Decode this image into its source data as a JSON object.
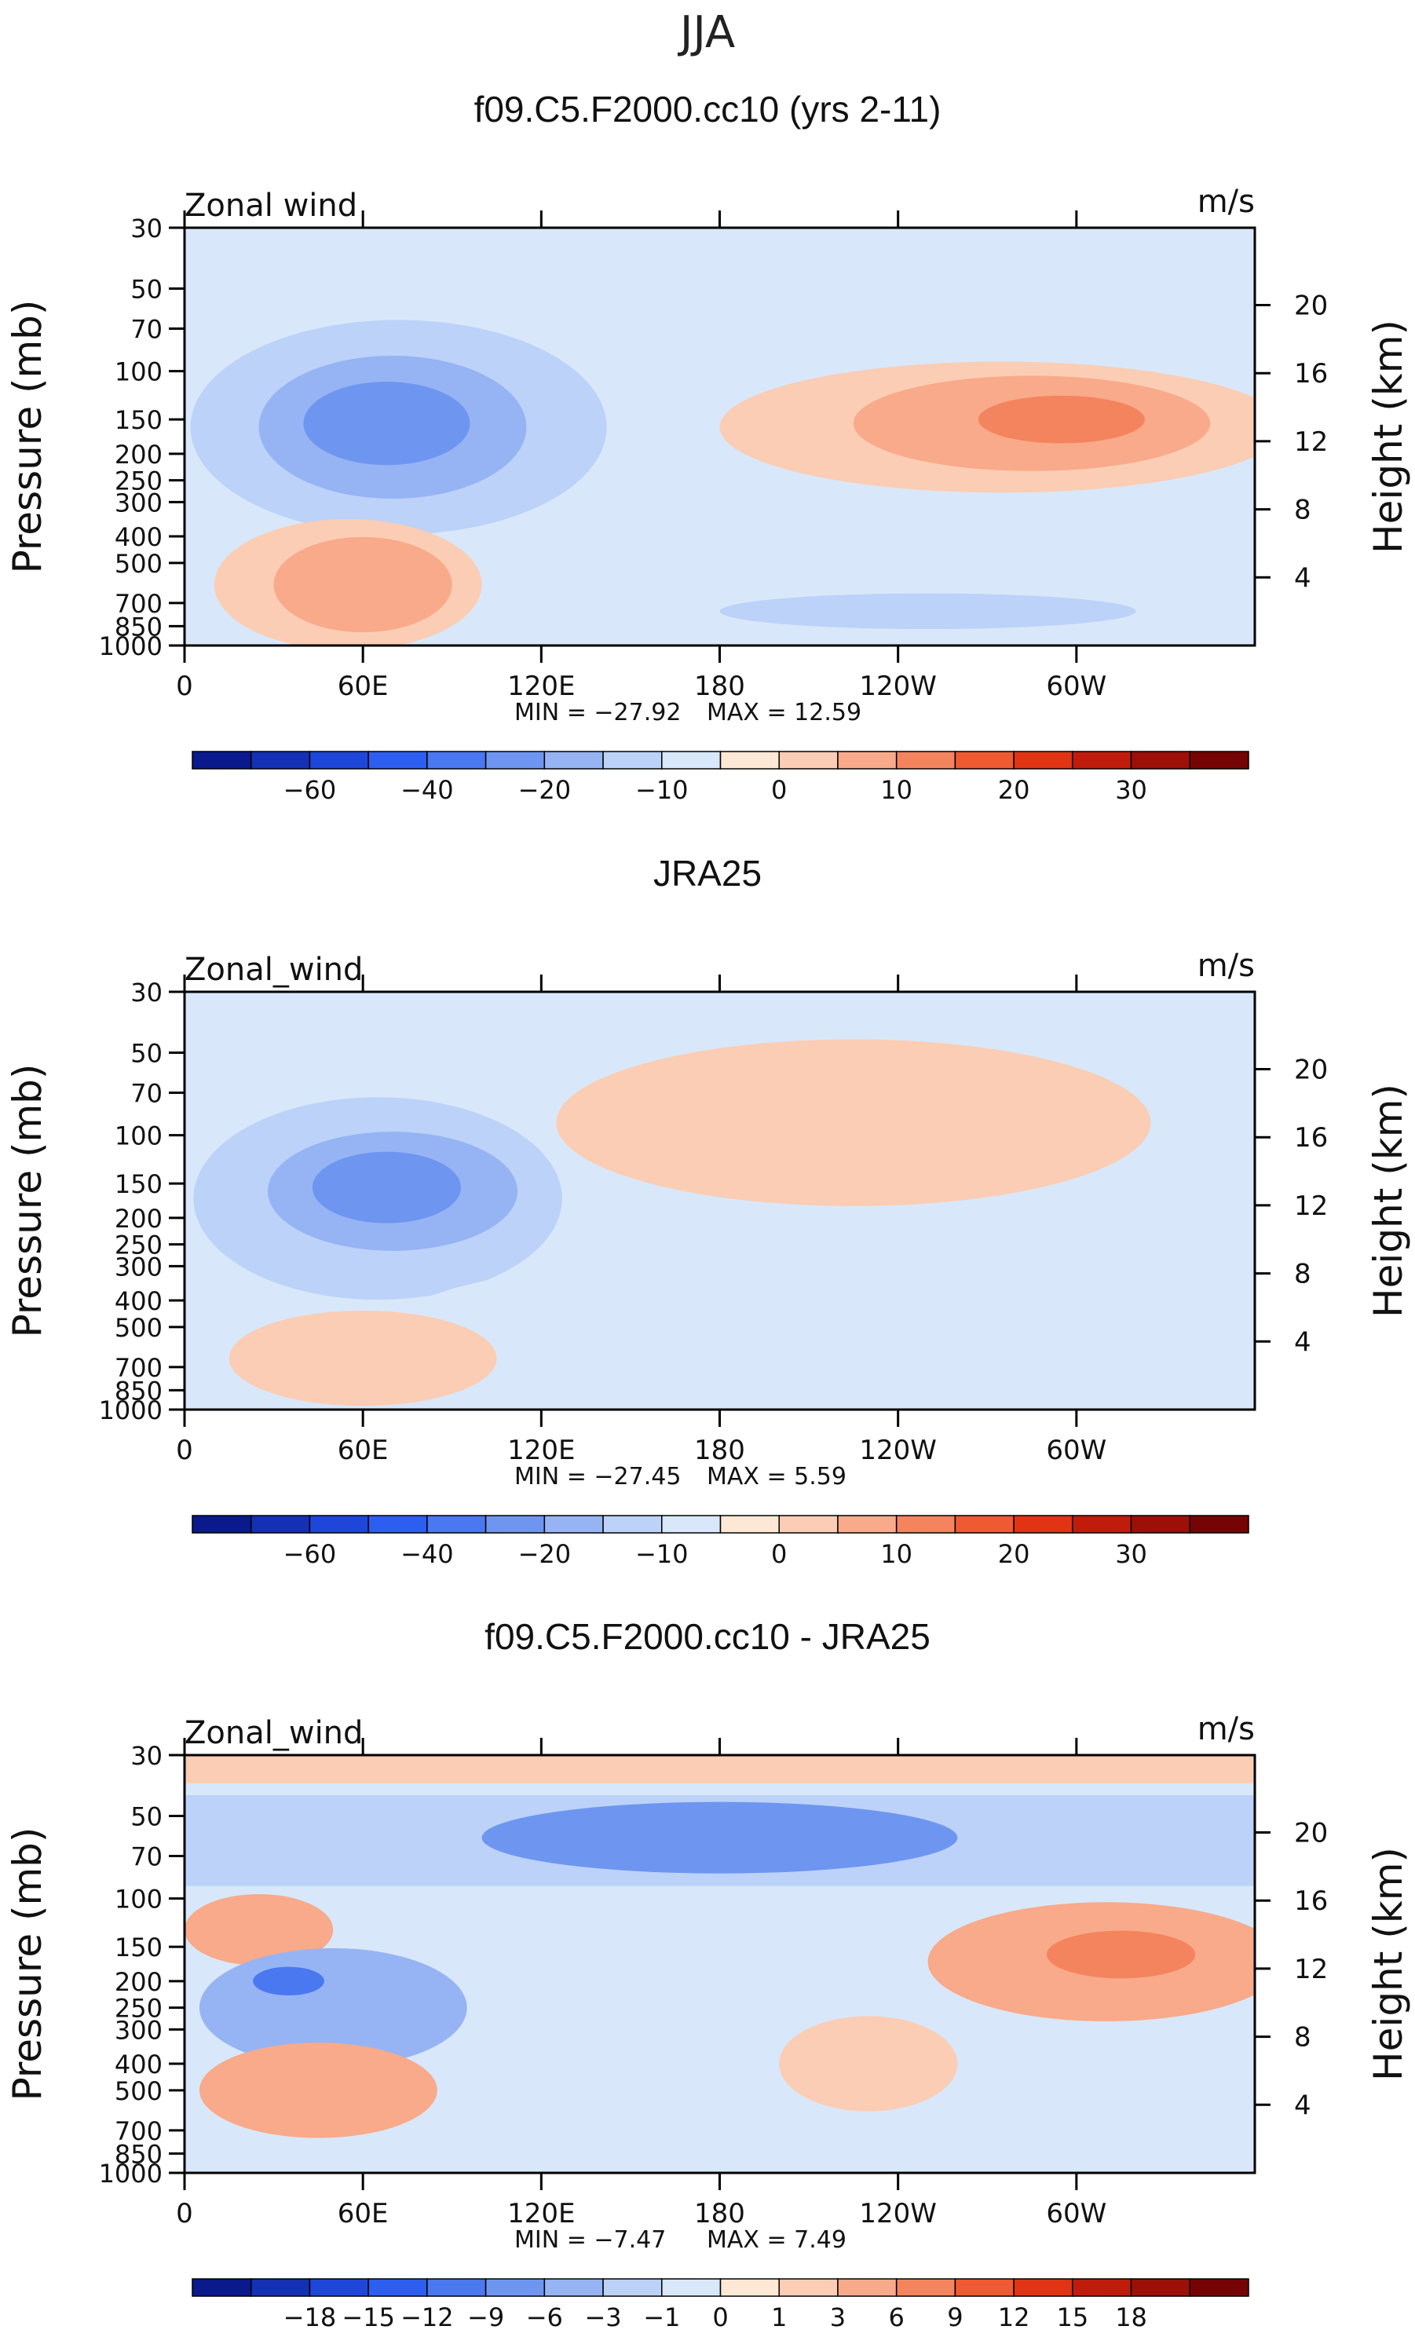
{
  "season": "JJA",
  "colors": {
    "main_scale": [
      "#0a1a8c",
      "#1430b4",
      "#1e46d8",
      "#2c5ef0",
      "#4a78f0",
      "#6e96f0",
      "#96b4f4",
      "#bcd2f8",
      "#d8e8fa",
      "#fde8d6",
      "#fbcdb4",
      "#f8aa8a",
      "#f4845e",
      "#ee5a32",
      "#e03414",
      "#c01c0c",
      "#9c1008",
      "#760404"
    ],
    "diff_scale": [
      "#0a1a8c",
      "#1430b4",
      "#1e46d8",
      "#2c5ef0",
      "#4a78f0",
      "#6e96f0",
      "#96b4f4",
      "#bcd2f8",
      "#d8e8fa",
      "#fde8d6",
      "#fbcdb4",
      "#f8aa8a",
      "#f4845e",
      "#ee5a32",
      "#e03414",
      "#c01c0c",
      "#9c1008",
      "#760404"
    ]
  },
  "chart_data": [
    {
      "type": "heatmap",
      "title": "f09.C5.F2000.cc10 (yrs 2-11)",
      "variable_label": "Zonal wind",
      "units_label": "m/s",
      "ylabel": "Pressure (mb)",
      "ylabel_right": "Height (km)",
      "x_ticks": [
        {
          "lon": 0,
          "label": "0"
        },
        {
          "lon": 60,
          "label": "60E"
        },
        {
          "lon": 120,
          "label": "120E"
        },
        {
          "lon": 180,
          "label": "180"
        },
        {
          "lon": 240,
          "label": "120W"
        },
        {
          "lon": 300,
          "label": "60W"
        }
      ],
      "xlim": [
        0,
        360
      ],
      "y_ticks": [
        30,
        50,
        70,
        100,
        150,
        200,
        250,
        300,
        400,
        500,
        700,
        850,
        1000
      ],
      "ylim": [
        1000,
        30
      ],
      "height_ticks": [
        {
          "km": 20,
          "label": "20"
        },
        {
          "km": 16,
          "label": "16"
        },
        {
          "km": 12,
          "label": "12"
        },
        {
          "km": 8,
          "label": "8"
        },
        {
          "km": 4,
          "label": "4"
        }
      ],
      "min_text": "MIN = −27.92",
      "max_text": "MAX =   12.59",
      "min": -27.92,
      "max": 12.59,
      "colorbar_labels": [
        {
          "idx": 1,
          "text": "−60"
        },
        {
          "idx": 3,
          "text": "−40"
        },
        {
          "idx": 5,
          "text": "−20"
        },
        {
          "idx": 7,
          "text": "−10"
        },
        {
          "idx": 9,
          "text": "0"
        },
        {
          "idx": 11,
          "text": "10"
        },
        {
          "idx": 13,
          "text": "20"
        },
        {
          "idx": 15,
          "text": "30"
        }
      ],
      "features": [
        {
          "name": "upper-band",
          "lon0": 0,
          "lon1": 360,
          "p0": 30,
          "p1": 70,
          "level": 8
        },
        {
          "name": "easterly-jet-outer",
          "lon": 72,
          "p": 160,
          "rlon": 70,
          "rp": 0.9,
          "level": 7
        },
        {
          "name": "easterly-jet-mid",
          "lon": 70,
          "p": 160,
          "rlon": 45,
          "rp": 0.6,
          "level": 6
        },
        {
          "name": "easterly-jet-core",
          "lon": 68,
          "p": 155,
          "rlon": 28,
          "rp": 0.35,
          "level": 5
        },
        {
          "name": "westerly-jet-outer",
          "lon": 275,
          "p": 160,
          "rlon": 95,
          "rp": 0.55,
          "level": 10
        },
        {
          "name": "westerly-jet-mid",
          "lon": 285,
          "p": 155,
          "rlon": 60,
          "rp": 0.4,
          "level": 11
        },
        {
          "name": "westerly-jet-core",
          "lon": 295,
          "p": 150,
          "rlon": 28,
          "rp": 0.2,
          "level": 12
        },
        {
          "name": "lower-westerly",
          "lon": 55,
          "p": 600,
          "rlon": 45,
          "rp": 0.55,
          "level": 10
        },
        {
          "name": "lower-westerly-core",
          "lon": 60,
          "p": 600,
          "rlon": 30,
          "rp": 0.4,
          "level": 11
        },
        {
          "name": "tropical-easterly-low",
          "lon": 250,
          "p": 750,
          "rlon": 70,
          "rp": 0.15,
          "level": 7
        }
      ]
    },
    {
      "type": "heatmap",
      "title": "JRA25",
      "variable_label": "Zonal_wind",
      "units_label": "m/s",
      "ylabel": "Pressure (mb)",
      "ylabel_right": "Height (km)",
      "x_ticks": [
        {
          "lon": 0,
          "label": "0"
        },
        {
          "lon": 60,
          "label": "60E"
        },
        {
          "lon": 120,
          "label": "120E"
        },
        {
          "lon": 180,
          "label": "180"
        },
        {
          "lon": 240,
          "label": "120W"
        },
        {
          "lon": 300,
          "label": "60W"
        }
      ],
      "xlim": [
        0,
        360
      ],
      "y_ticks": [
        30,
        50,
        70,
        100,
        150,
        200,
        250,
        300,
        400,
        500,
        700,
        850,
        1000
      ],
      "ylim": [
        1000,
        30
      ],
      "height_ticks": [
        {
          "km": 20,
          "label": "20"
        },
        {
          "km": 16,
          "label": "16"
        },
        {
          "km": 12,
          "label": "12"
        },
        {
          "km": 8,
          "label": "8"
        },
        {
          "km": 4,
          "label": "4"
        }
      ],
      "min_text": "MIN = −27.45",
      "max_text": "MAX =     5.59",
      "min": -27.45,
      "max": 5.59,
      "colorbar_labels": [
        {
          "idx": 1,
          "text": "−60"
        },
        {
          "idx": 3,
          "text": "−40"
        },
        {
          "idx": 5,
          "text": "−20"
        },
        {
          "idx": 7,
          "text": "−10"
        },
        {
          "idx": 9,
          "text": "0"
        },
        {
          "idx": 11,
          "text": "10"
        },
        {
          "idx": 13,
          "text": "20"
        },
        {
          "idx": 15,
          "text": "30"
        }
      ],
      "features": [
        {
          "name": "top-band",
          "lon0": 0,
          "lon1": 360,
          "p0": 30,
          "p1": 38,
          "level": 8
        },
        {
          "name": "upper-westerly",
          "lon": 225,
          "p": 90,
          "rlon": 100,
          "rp": 0.7,
          "level": 10
        },
        {
          "name": "easterly-jet-outer",
          "lon": 65,
          "p": 170,
          "rlon": 62,
          "rp": 0.85,
          "level": 7
        },
        {
          "name": "easterly-jet-mid",
          "lon": 70,
          "p": 160,
          "rlon": 42,
          "rp": 0.5,
          "level": 6
        },
        {
          "name": "easterly-jet-core",
          "lon": 68,
          "p": 155,
          "rlon": 25,
          "rp": 0.3,
          "level": 5
        },
        {
          "name": "lower-easterly",
          "lon": 200,
          "p": 500,
          "rlon": 130,
          "rp": 0.6,
          "level": 8
        },
        {
          "name": "lower-westerly",
          "lon": 60,
          "p": 650,
          "rlon": 45,
          "rp": 0.4,
          "level": 10
        }
      ]
    },
    {
      "type": "heatmap",
      "title": "f09.C5.F2000.cc10 - JRA25",
      "variable_label": "Zonal_wind",
      "units_label": "m/s",
      "ylabel": "Pressure (mb)",
      "ylabel_right": "Height (km)",
      "x_ticks": [
        {
          "lon": 0,
          "label": "0"
        },
        {
          "lon": 60,
          "label": "60E"
        },
        {
          "lon": 120,
          "label": "120E"
        },
        {
          "lon": 180,
          "label": "180"
        },
        {
          "lon": 240,
          "label": "120W"
        },
        {
          "lon": 300,
          "label": "60W"
        }
      ],
      "xlim": [
        0,
        360
      ],
      "y_ticks": [
        30,
        50,
        70,
        100,
        150,
        200,
        250,
        300,
        400,
        500,
        700,
        850,
        1000
      ],
      "ylim": [
        1000,
        30
      ],
      "height_ticks": [
        {
          "km": 20,
          "label": "20"
        },
        {
          "km": 16,
          "label": "16"
        },
        {
          "km": 12,
          "label": "12"
        },
        {
          "km": 8,
          "label": "8"
        },
        {
          "km": 4,
          "label": "4"
        }
      ],
      "min_text": "MIN =   −7.47",
      "max_text": "MAX =     7.49",
      "min": -7.47,
      "max": 7.49,
      "colorbar_labels": [
        {
          "idx": 1,
          "text": "−18"
        },
        {
          "idx": 2,
          "text": "−15"
        },
        {
          "idx": 3,
          "text": "−12"
        },
        {
          "idx": 4,
          "text": "−9"
        },
        {
          "idx": 5,
          "text": "−6"
        },
        {
          "idx": 6,
          "text": "−3"
        },
        {
          "idx": 7,
          "text": "−1"
        },
        {
          "idx": 8,
          "text": "0"
        },
        {
          "idx": 9,
          "text": "1"
        },
        {
          "idx": 10,
          "text": "3"
        },
        {
          "idx": 11,
          "text": "6"
        },
        {
          "idx": 12,
          "text": "9"
        },
        {
          "idx": 13,
          "text": "12"
        },
        {
          "idx": 14,
          "text": "15"
        },
        {
          "idx": 15,
          "text": "18"
        }
      ],
      "features": [
        {
          "name": "top-band",
          "lon0": 0,
          "lon1": 360,
          "p0": 30,
          "p1": 38,
          "level": 10
        },
        {
          "name": "upper-negative",
          "lon0": 0,
          "lon1": 360,
          "p0": 42,
          "p1": 90,
          "level": 7
        },
        {
          "name": "upper-negative-core",
          "lon": 180,
          "p": 60,
          "rlon": 80,
          "rp": 0.3,
          "level": 5
        },
        {
          "name": "west-positive",
          "lon": 25,
          "p": 130,
          "rlon": 25,
          "rp": 0.3,
          "level": 11
        },
        {
          "name": "east-positive",
          "lon": 310,
          "p": 170,
          "rlon": 60,
          "rp": 0.5,
          "level": 11
        },
        {
          "name": "east-positive-core",
          "lon": 315,
          "p": 160,
          "rlon": 25,
          "rp": 0.2,
          "level": 12
        },
        {
          "name": "west-negative",
          "lon": 50,
          "p": 250,
          "rlon": 45,
          "rp": 0.5,
          "level": 6
        },
        {
          "name": "west-negative-core",
          "lon": 35,
          "p": 200,
          "rlon": 12,
          "rp": 0.12,
          "level": 4
        },
        {
          "name": "lower-positive",
          "lon": 45,
          "p": 500,
          "rlon": 40,
          "rp": 0.4,
          "level": 11
        },
        {
          "name": "mid-positive",
          "lon": 230,
          "p": 400,
          "rlon": 30,
          "rp": 0.4,
          "level": 10
        }
      ]
    }
  ]
}
